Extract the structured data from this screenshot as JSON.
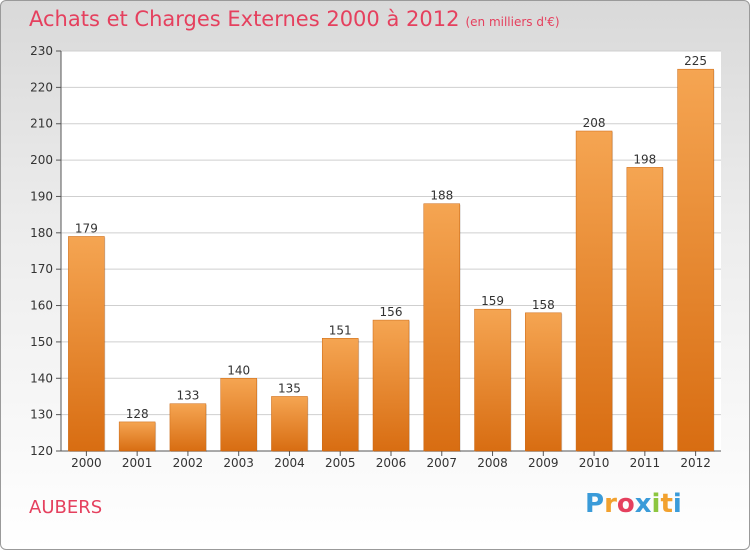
{
  "title": {
    "main": "Achats et Charges Externes 2000 à 2012",
    "unit": "(en milliers d'€)"
  },
  "commune": "AUBERS",
  "logo": {
    "p": "P",
    "r": "r",
    "o": "o",
    "x": "x",
    "i1": "i",
    "t": "t",
    "i2": "i"
  },
  "colors": {
    "bar_top": "#f5a552",
    "bar_bottom": "#d86d12",
    "title": "#e5405e",
    "grid": "#cfcfcf"
  },
  "chart_data": {
    "type": "bar",
    "categories": [
      "2000",
      "2001",
      "2002",
      "2003",
      "2004",
      "2005",
      "2006",
      "2007",
      "2008",
      "2009",
      "2010",
      "2011",
      "2012"
    ],
    "values": [
      179,
      128,
      133,
      140,
      135,
      151,
      156,
      188,
      159,
      158,
      208,
      198,
      225
    ],
    "ylim": [
      120,
      230
    ],
    "yticks": [
      120,
      130,
      140,
      150,
      160,
      170,
      180,
      190,
      200,
      210,
      220,
      230
    ],
    "grid": true
  }
}
